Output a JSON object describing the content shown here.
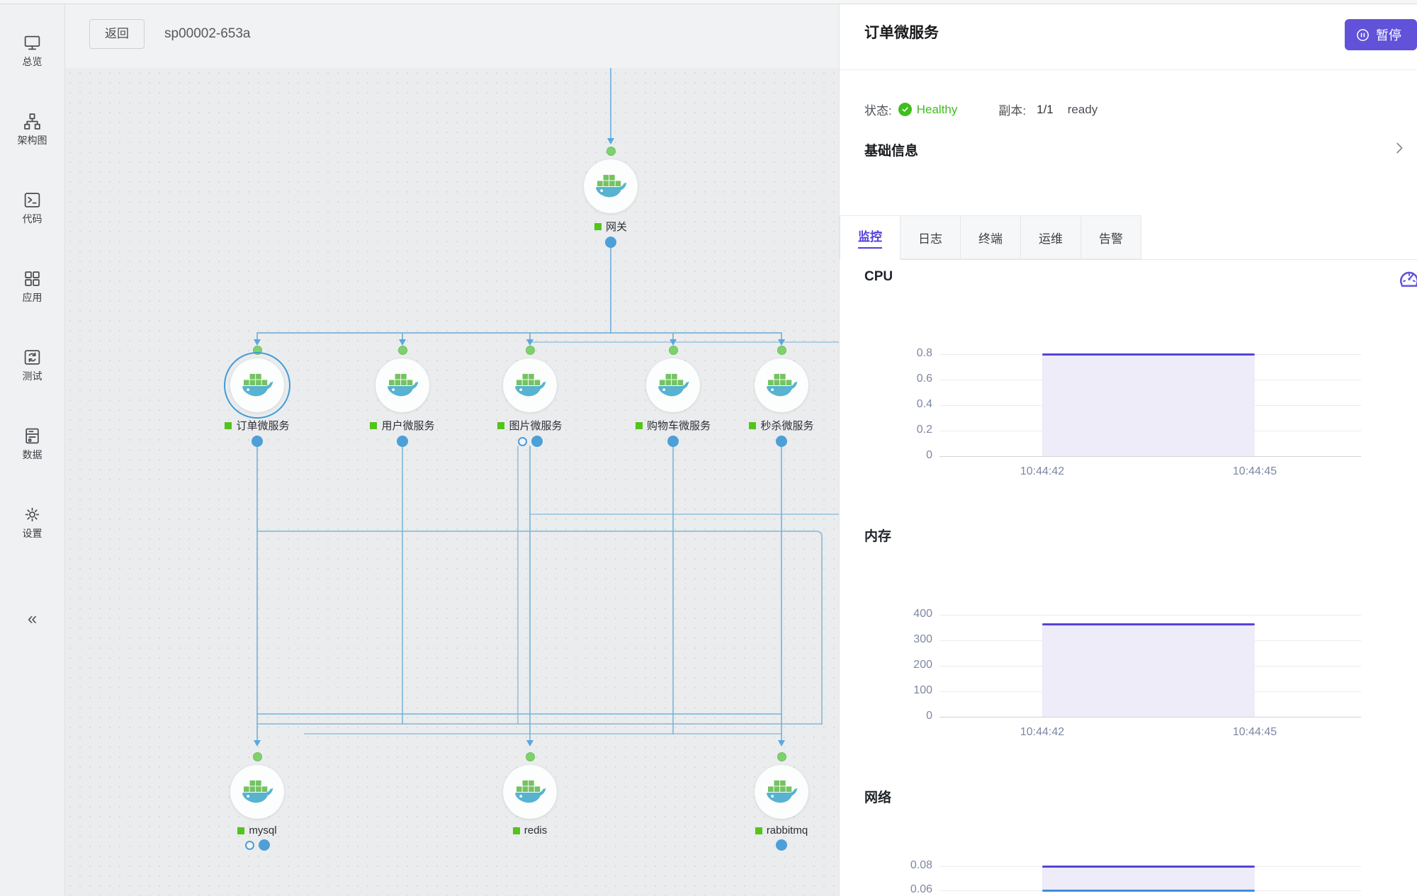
{
  "topbar": {
    "back_label": "返回",
    "title": "sp00002-653a"
  },
  "sidebar": {
    "items": [
      {
        "id": "overview",
        "label": "总览"
      },
      {
        "id": "architecture",
        "label": "架构图"
      },
      {
        "id": "code",
        "label": "代码"
      },
      {
        "id": "apps",
        "label": "应用"
      },
      {
        "id": "test",
        "label": "测试"
      },
      {
        "id": "data",
        "label": "数据"
      },
      {
        "id": "settings",
        "label": "设置"
      }
    ],
    "collapse": "«"
  },
  "topology": {
    "nodes": [
      {
        "id": "gateway",
        "label": "网关",
        "selected": false,
        "ports_bottom": [
          "solid"
        ]
      },
      {
        "id": "order",
        "label": "订单微服务",
        "selected": true,
        "ports_bottom": [
          "solid"
        ]
      },
      {
        "id": "user",
        "label": "用户微服务",
        "selected": false,
        "ports_bottom": [
          "solid"
        ]
      },
      {
        "id": "image",
        "label": "图片微服务",
        "selected": false,
        "ports_bottom": [
          "hollow",
          "solid"
        ]
      },
      {
        "id": "cart",
        "label": "购物车微服务",
        "selected": false,
        "ports_bottom": [
          "solid"
        ]
      },
      {
        "id": "seckill",
        "label": "秒杀微服务",
        "selected": false,
        "ports_bottom": [
          "solid"
        ]
      },
      {
        "id": "mysql",
        "label": "mysql",
        "selected": false,
        "ports_bottom": [
          "hollow",
          "solid"
        ]
      },
      {
        "id": "redis",
        "label": "redis",
        "selected": false,
        "ports_bottom": []
      },
      {
        "id": "rabbitmq",
        "label": "rabbitmq",
        "selected": false,
        "ports_bottom": [
          "solid"
        ]
      }
    ]
  },
  "panel": {
    "title": "订单微服务",
    "pause_label": "暂停",
    "status": {
      "label": "状态:",
      "value": "Healthy"
    },
    "replicas": {
      "label": "副本:",
      "count": "1/1",
      "state": "ready"
    },
    "basic_info_label": "基础信息",
    "tabs": [
      {
        "id": "monitor",
        "label": "监控",
        "active": true
      },
      {
        "id": "logs",
        "label": "日志",
        "active": false
      },
      {
        "id": "terminal",
        "label": "终端",
        "active": false
      },
      {
        "id": "ops",
        "label": "运维",
        "active": false
      },
      {
        "id": "alerts",
        "label": "告警",
        "active": false
      }
    ]
  },
  "chart_data": [
    {
      "id": "cpu",
      "type": "area",
      "title": "CPU",
      "yticks": [
        0.8,
        0.6,
        0.4,
        0.2,
        0
      ],
      "ylim": [
        0,
        0.8
      ],
      "xticks": [
        "10:44:42",
        "10:44:45"
      ],
      "series": [
        {
          "name": "cpu-usage",
          "color": "#5544d8",
          "values": [
            0.8,
            0.8
          ]
        }
      ],
      "fill": "baseline",
      "grid": true,
      "legend": false
    },
    {
      "id": "memory",
      "type": "area",
      "title": "内存",
      "yticks": [
        400,
        300,
        200,
        100,
        0
      ],
      "ylim": [
        0,
        400
      ],
      "xticks": [
        "10:44:42",
        "10:44:45"
      ],
      "series": [
        {
          "name": "memory-mb",
          "color": "#5544d8",
          "values": [
            365,
            365
          ]
        }
      ],
      "fill": "baseline",
      "grid": true,
      "legend": false
    },
    {
      "id": "network",
      "type": "area",
      "title": "网络",
      "yticks": [
        0.08,
        0.06
      ],
      "ylim": [
        0,
        0.08
      ],
      "partially_visible": true,
      "xticks": [],
      "series": [
        {
          "name": "net-out",
          "color": "#5544d8",
          "values": [
            0.08,
            0.08
          ]
        },
        {
          "name": "net-in",
          "color": "#3e8ede",
          "values": [
            0.06,
            0.06
          ]
        }
      ],
      "fill": "between",
      "grid": true,
      "legend": false
    }
  ],
  "colors": {
    "accent": "#6152d9",
    "chart_line": "#5544d8",
    "chart_fill": "#edecf8",
    "healthy": "#3fbe1d",
    "label_square": "#52c41a",
    "edge_blue": "#7ab5da",
    "port_green": "#7fd06e",
    "port_blue": "#4d9fd8"
  }
}
